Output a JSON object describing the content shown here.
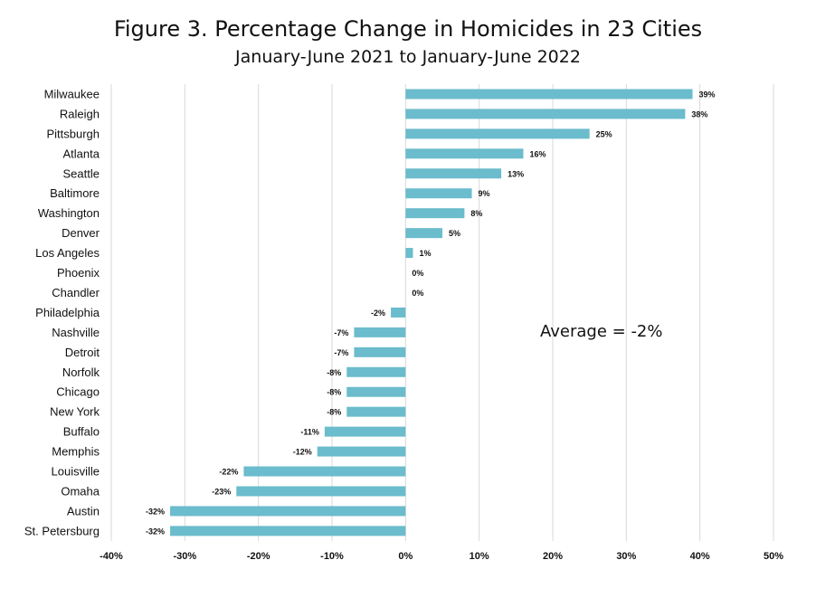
{
  "chart_data": {
    "type": "bar",
    "orientation": "horizontal",
    "title": "Figure 3. Percentage Change in Homicides in 23 Cities",
    "subtitle": "January-June 2021 to January-June 2022",
    "categories": [
      "Milwaukee",
      "Raleigh",
      "Pittsburgh",
      "Atlanta",
      "Seattle",
      "Baltimore",
      "Washington",
      "Denver",
      "Los Angeles",
      "Phoenix",
      "Chandler",
      "Philadelphia",
      "Nashville",
      "Detroit",
      "Norfolk",
      "Chicago",
      "New York",
      "Buffalo",
      "Memphis",
      "Louisville",
      "Omaha",
      "Austin",
      "St. Petersburg"
    ],
    "values": [
      39,
      38,
      25,
      16,
      13,
      9,
      8,
      5,
      1,
      0,
      0,
      -2,
      -7,
      -7,
      -8,
      -8,
      -8,
      -11,
      -12,
      -22,
      -23,
      -32,
      -32
    ],
    "value_labels": [
      "39%",
      "38%",
      "25%",
      "16%",
      "13%",
      "9%",
      "8%",
      "5%",
      "1%",
      "0%",
      "0%",
      "-2%",
      "-7%",
      "-7%",
      "-8%",
      "-8%",
      "-8%",
      "-11%",
      "-12%",
      "-22%",
      "-23%",
      "-32%",
      "-32%"
    ],
    "xlim": [
      -40,
      50
    ],
    "xticks": [
      -40,
      -30,
      -20,
      -10,
      0,
      10,
      20,
      30,
      40,
      50
    ],
    "xtick_labels": [
      "-40%",
      "-30%",
      "-20%",
      "-10%",
      "0%",
      "10%",
      "20%",
      "30%",
      "40%",
      "50%"
    ],
    "annotation": "Average = -2%",
    "grid": "vertical",
    "bar_color": "#6bbccc"
  }
}
